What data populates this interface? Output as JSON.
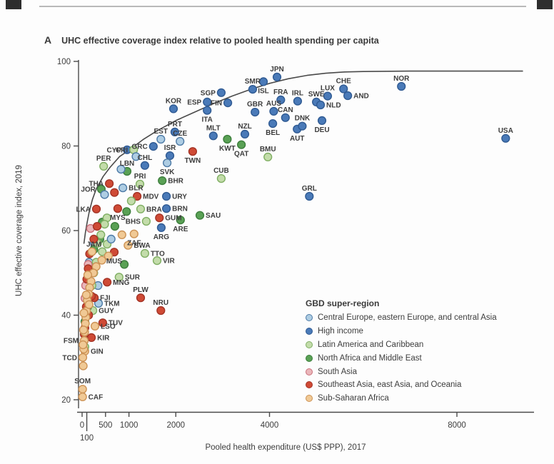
{
  "figure": {
    "panel_label": "A",
    "title": "UHC effective coverage index relative to pooled health spending per capita"
  },
  "chart_data": {
    "type": "scatter",
    "title": "UHC effective coverage index relative to pooled health spending per capita",
    "xlabel": "Pooled health expenditure (US$ PPP), 2017",
    "ylabel": "UHC effective coverage index, 2019",
    "x_ticks": [
      0,
      100,
      500,
      1000,
      2000,
      4000,
      8000
    ],
    "y_ticks": [
      20,
      40,
      60,
      80,
      100
    ],
    "xlim": [
      0,
      9650
    ],
    "ylim": [
      20,
      100
    ],
    "grid": false,
    "legend_title": "GBD super-region",
    "legend_position": "lower right",
    "regions": {
      "cee": {
        "name": "Central Europe, eastern Europe, and central Asia",
        "fill": "#aecde3",
        "ring": "#4d7aa6"
      },
      "hi": {
        "name": "High income",
        "fill": "#4a7ab8",
        "ring": "#2f5a92"
      },
      "lac": {
        "name": "Latin America and Caribbean",
        "fill": "#c3dcaa",
        "ring": "#7fae62"
      },
      "name": {
        "name": "North Africa and Middle East",
        "fill": "#5aa155",
        "ring": "#3c7e3c"
      },
      "sa": {
        "name": "South Asia",
        "fill": "#eab6ba",
        "ring": "#c9707a"
      },
      "sea": {
        "name": "Southeast Asia, east Asia, and Oceania",
        "fill": "#cf4a35",
        "ring": "#a33325"
      },
      "ssa": {
        "name": "Sub-Saharan Africa",
        "fill": "#f0c995",
        "ring": "#cc9255"
      }
    },
    "frontier_curve": [
      [
        40,
        57
      ],
      [
        70,
        59.5
      ],
      [
        100,
        61.5
      ],
      [
        150,
        64.3
      ],
      [
        220,
        67.3
      ],
      [
        300,
        69.8
      ],
      [
        450,
        72.8
      ],
      [
        600,
        75
      ],
      [
        800,
        77.5
      ],
      [
        1000,
        79
      ],
      [
        1300,
        81.5
      ],
      [
        1600,
        83.6
      ],
      [
        2000,
        86
      ],
      [
        2400,
        88
      ],
      [
        2800,
        90
      ],
      [
        3200,
        91.8
      ],
      [
        3600,
        93.4
      ],
      [
        4000,
        94.8
      ],
      [
        4400,
        95.9
      ],
      [
        4800,
        96.7
      ],
      [
        5200,
        97.2
      ],
      [
        5600,
        97.5
      ],
      [
        6000,
        97.6
      ],
      [
        7000,
        97.7
      ],
      [
        8000,
        97.7
      ],
      [
        9400,
        97.7
      ]
    ],
    "points": [
      [
        "JPN",
        "hi",
        4160,
        96.3,
        "above"
      ],
      [
        "SGP",
        "hi",
        2970,
        92.6,
        "left"
      ],
      [
        "SMR",
        "hi",
        3640,
        93.4,
        "above"
      ],
      [
        "ISL",
        "hi",
        3870,
        95.2,
        "below"
      ],
      [
        "FRA",
        "hi",
        4240,
        90.9,
        "above"
      ],
      [
        "IRL",
        "hi",
        4600,
        90.6,
        "above"
      ],
      [
        "SWE",
        "hi",
        5000,
        90.4,
        "above"
      ],
      [
        "LUX",
        "hi",
        5240,
        91.8,
        "above"
      ],
      [
        "CHE",
        "hi",
        5580,
        93.5,
        "above"
      ],
      [
        "AND",
        "hi",
        5670,
        91.9,
        "right"
      ],
      [
        "NOR",
        "hi",
        6815,
        94.1,
        "above"
      ],
      [
        "ESP",
        "hi",
        2670,
        90.4,
        "left"
      ],
      [
        "FIN",
        "hi",
        3110,
        90.2,
        "left"
      ],
      [
        "GBR",
        "hi",
        3690,
        88,
        "above"
      ],
      [
        "AUS",
        "hi",
        4090,
        88.2,
        "above"
      ],
      [
        "ITA",
        "hi",
        2670,
        88.4,
        "below"
      ],
      [
        "MLT",
        "hi",
        2800,
        82.4,
        "above"
      ],
      [
        "NZL",
        "hi",
        3475,
        82.8,
        "above"
      ],
      [
        "CAN",
        "hi",
        4340,
        86.7,
        "above"
      ],
      [
        "BEL",
        "hi",
        4070,
        85.3,
        "below"
      ],
      [
        "AUT",
        "hi",
        4590,
        84,
        "below"
      ],
      [
        "DNK",
        "hi",
        4700,
        84.7,
        "above"
      ],
      [
        "NLD",
        "hi",
        5090,
        89.7,
        "right"
      ],
      [
        "DEU",
        "hi",
        5120,
        86,
        "below"
      ],
      [
        "USA",
        "hi",
        9040,
        81.8,
        "above"
      ],
      [
        "GRL",
        "hi",
        4850,
        68.1,
        "above"
      ],
      [
        "KOR",
        "hi",
        1950,
        88.8,
        "above"
      ],
      [
        "PRT",
        "hi",
        1980,
        83.3,
        "above"
      ],
      [
        "CYP",
        "hi",
        960,
        79.1,
        "left"
      ],
      [
        "ISR",
        "hi",
        1875,
        77.7,
        "above"
      ],
      [
        "CHL",
        "hi",
        1340,
        75.4,
        "above"
      ],
      [
        "URY",
        "hi",
        1800,
        68.1,
        "right"
      ],
      [
        "ARG",
        "hi",
        1690,
        60.7,
        "below"
      ],
      [
        "BRN",
        "hi",
        1800,
        65.2,
        "right"
      ],
      [
        "GRC",
        "hi",
        1520,
        79.9,
        "left"
      ],
      [
        "EST",
        "cee",
        1680,
        81.6,
        "above"
      ],
      [
        "CZE",
        "cee",
        2090,
        81.1,
        "above"
      ],
      [
        "SVK",
        "cee",
        1815,
        76,
        "below"
      ],
      [
        "BLR",
        "cee",
        870,
        70.1,
        "right"
      ],
      [
        "TKM",
        "cee",
        350,
        42.8,
        "right"
      ],
      [
        "CRI",
        "lac",
        1100,
        79.1,
        "left"
      ],
      [
        "PER",
        "lac",
        460,
        75.2,
        "above"
      ],
      [
        "PRI",
        "lac",
        1235,
        71,
        "above"
      ],
      [
        "CUB",
        "lac",
        2970,
        72.3,
        "above"
      ],
      [
        "BMU",
        "lac",
        3965,
        77.4,
        "above"
      ],
      [
        "BRA",
        "lac",
        1250,
        65.1,
        "right"
      ],
      [
        "BHS",
        "lac",
        1370,
        62.2,
        "left"
      ],
      [
        "JAM",
        "lac",
        535,
        56.8,
        "left"
      ],
      [
        "TTO",
        "lac",
        1340,
        54.6,
        "right"
      ],
      [
        "VIR",
        "lac",
        1600,
        52.9,
        "right"
      ],
      [
        "SUR",
        "lac",
        790,
        49,
        "right"
      ],
      [
        "GUY",
        "lac",
        230,
        41.1,
        "right"
      ],
      [
        "KWT",
        "name",
        3100,
        81.6,
        "below"
      ],
      [
        "QAT",
        "name",
        3400,
        80.3,
        "below"
      ],
      [
        "BHR",
        "name",
        1710,
        71.8,
        "right"
      ],
      [
        "LBN",
        "name",
        960,
        74,
        "above"
      ],
      [
        "JOR",
        "name",
        410,
        69.8,
        "left"
      ],
      [
        "ARE",
        "name",
        2100,
        62.5,
        "below"
      ],
      [
        "SAU",
        "name",
        2515,
        63.6,
        "right"
      ],
      [
        "TWN",
        "sea",
        2360,
        78.7,
        "below"
      ],
      [
        "THA",
        "sea",
        580,
        71.1,
        "left"
      ],
      [
        "MYS",
        "sea",
        760,
        65.2,
        "below"
      ],
      [
        "LKA",
        "sea",
        305,
        65.1,
        "left"
      ],
      [
        "MDV",
        "sea",
        1175,
        68.1,
        "right"
      ],
      [
        "GUM",
        "sea",
        1650,
        63,
        "right"
      ],
      [
        "MUS",
        "sea",
        685,
        54.9,
        "below"
      ],
      [
        "MNG",
        "sea",
        535,
        47.8,
        "right"
      ],
      [
        "FJI",
        "sea",
        260,
        44.1,
        "right"
      ],
      [
        "PLW",
        "sea",
        1250,
        44.1,
        "above"
      ],
      [
        "NRU",
        "sea",
        1680,
        41.1,
        "above"
      ],
      [
        "TUV",
        "sea",
        440,
        38.2,
        "right"
      ],
      [
        "KIR",
        "sea",
        200,
        34.7,
        "right"
      ],
      [
        "FSM",
        "sea",
        45,
        34,
        "left"
      ],
      [
        "ZAF",
        "ssa",
        1110,
        59.2,
        "below"
      ],
      [
        "BWA",
        "ssa",
        980,
        56.5,
        "right"
      ],
      [
        "LSO",
        "ssa",
        275,
        37.4,
        "right"
      ],
      [
        "GIN",
        "ssa",
        60,
        31.5,
        "right"
      ],
      [
        "TCD",
        "ssa",
        15,
        30,
        "left"
      ],
      [
        "SOM",
        "ssa",
        10,
        22.5,
        "above"
      ],
      [
        "CAF",
        "ssa",
        10,
        20.7,
        "right"
      ],
      [
        "",
        "cee",
        260,
        57
      ],
      [
        "",
        "cee",
        150,
        52.5
      ],
      [
        "",
        "cee",
        340,
        47
      ],
      [
        "",
        "cee",
        620,
        58
      ],
      [
        "",
        "cee",
        480,
        68.5
      ],
      [
        "",
        "cee",
        830,
        74.5
      ],
      [
        "",
        "cee",
        1150,
        77.5
      ],
      [
        "",
        "sa",
        180,
        60.5
      ],
      [
        "",
        "sa",
        130,
        52
      ],
      [
        "",
        "sa",
        75,
        47
      ],
      [
        "",
        "sa",
        60,
        44
      ],
      [
        "",
        "name",
        950,
        64.5
      ],
      [
        "",
        "name",
        430,
        62
      ],
      [
        "",
        "name",
        700,
        61
      ],
      [
        "",
        "name",
        380,
        58
      ],
      [
        "",
        "name",
        250,
        55.5
      ],
      [
        "",
        "name",
        120,
        42
      ],
      [
        "",
        "name",
        60,
        38.5
      ],
      [
        "",
        "name",
        900,
        52
      ],
      [
        "",
        "lac",
        1050,
        67
      ],
      [
        "",
        "lac",
        530,
        63
      ],
      [
        "",
        "lac",
        480,
        61.5
      ],
      [
        "",
        "lac",
        400,
        59
      ],
      [
        "",
        "lac",
        330,
        57
      ],
      [
        "",
        "lac",
        430,
        55
      ],
      [
        "",
        "lac",
        300,
        52.5
      ],
      [
        "",
        "lac",
        250,
        50
      ],
      [
        "",
        "lac",
        210,
        47
      ],
      [
        "",
        "lac",
        60,
        32.5
      ],
      [
        "",
        "sea",
        690,
        69
      ],
      [
        "",
        "sea",
        320,
        61
      ],
      [
        "",
        "sea",
        250,
        58
      ],
      [
        "",
        "sea",
        160,
        54.5
      ],
      [
        "",
        "sea",
        130,
        51
      ],
      [
        "",
        "sea",
        100,
        48.5
      ],
      [
        "",
        "sea",
        90,
        42
      ],
      [
        "",
        "sea",
        140,
        40
      ],
      [
        "",
        "sea",
        60,
        37
      ],
      [
        "",
        "sea",
        45,
        35.5
      ],
      [
        "",
        "sea",
        200,
        44.5
      ],
      [
        "",
        "ssa",
        850,
        59
      ],
      [
        "",
        "ssa",
        560,
        54
      ],
      [
        "",
        "ssa",
        420,
        53
      ],
      [
        "",
        "ssa",
        300,
        51.5
      ],
      [
        "",
        "ssa",
        240,
        50
      ],
      [
        "",
        "ssa",
        190,
        48
      ],
      [
        "",
        "ssa",
        160,
        46.5
      ],
      [
        "",
        "ssa",
        140,
        45
      ],
      [
        "",
        "ssa",
        110,
        43.5
      ],
      [
        "",
        "ssa",
        95,
        41
      ],
      [
        "",
        "ssa",
        80,
        39.5
      ],
      [
        "",
        "ssa",
        70,
        38
      ],
      [
        "",
        "ssa",
        55,
        36
      ],
      [
        "",
        "ssa",
        45,
        34
      ],
      [
        "",
        "ssa",
        35,
        32
      ],
      [
        "",
        "ssa",
        25,
        28
      ],
      [
        "",
        "ssa",
        150,
        42.5
      ],
      [
        "",
        "ssa",
        210,
        55
      ],
      [
        "",
        "ssa",
        120,
        49.5
      ],
      [
        "",
        "ssa",
        90,
        44.8
      ],
      [
        "",
        "ssa",
        30,
        36.5
      ],
      [
        "",
        "ssa",
        40,
        40.5
      ],
      [
        "",
        "ssa",
        20,
        33
      ]
    ]
  }
}
